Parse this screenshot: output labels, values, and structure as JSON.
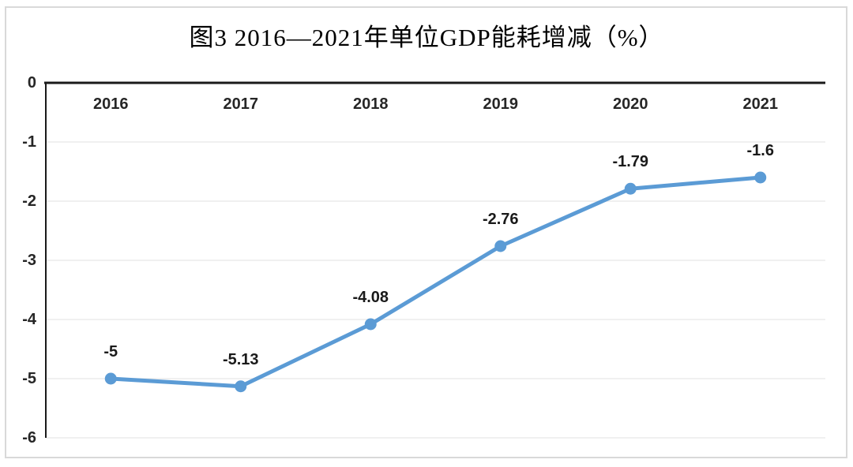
{
  "title": "图3 2016—2021年单位GDP能耗增减（%）",
  "chart_data": {
    "type": "line",
    "title": "图3 2016—2021年单位GDP能耗增减（%）",
    "categories": [
      "2016",
      "2017",
      "2018",
      "2019",
      "2020",
      "2021"
    ],
    "series": [
      {
        "name": "单位GDP能耗增减(%)",
        "values": [
          -5,
          -5.13,
          -4.08,
          -2.76,
          -1.79,
          -1.6
        ],
        "data_labels": [
          "-5",
          "-5.13",
          "-4.08",
          "-2.76",
          "-1.79",
          "-1.6"
        ]
      }
    ],
    "y_ticks": [
      0,
      -1,
      -2,
      -3,
      -4,
      -5,
      -6
    ],
    "y_tick_labels": [
      "0",
      "-1",
      "-2",
      "-3",
      "-4",
      "-5",
      "-6"
    ],
    "ylim": [
      -6,
      0
    ],
    "xlabel": "",
    "ylabel": "",
    "grid": true,
    "legend_position": "none",
    "colors": {
      "line": "#5B9BD5",
      "marker": "#5B9BD5",
      "axis": "#1a1a1a",
      "grid": "#ebebeb",
      "frame_border": "#d9d9d9",
      "tick_text": "#262626",
      "label_text": "#1a1a1a"
    }
  }
}
